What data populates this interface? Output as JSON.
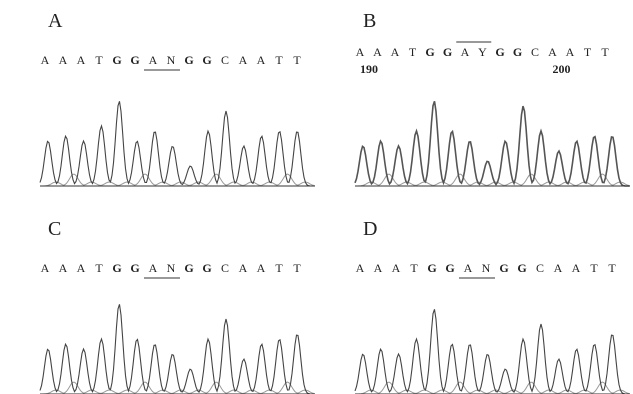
{
  "panels": [
    {
      "label": "A",
      "sequence": [
        "A",
        "A",
        "A",
        "T",
        "G",
        "G",
        "A",
        "N",
        "G",
        "G",
        "C",
        "A",
        "A",
        "T",
        "T"
      ]
    },
    {
      "label": "B",
      "sequence": [
        "A",
        "A",
        "A",
        "T",
        "G",
        "G",
        "A",
        "Y",
        "G",
        "G",
        "C",
        "A",
        "A",
        "T",
        "T"
      ],
      "positions": [
        "190",
        "200"
      ]
    },
    {
      "label": "C",
      "sequence": [
        "A",
        "A",
        "A",
        "T",
        "G",
        "G",
        "A",
        "N",
        "G",
        "G",
        "C",
        "A",
        "A",
        "T",
        "T"
      ]
    },
    {
      "label": "D",
      "sequence": [
        "A",
        "A",
        "A",
        "T",
        "G",
        "G",
        "A",
        "N",
        "G",
        "G",
        "C",
        "A",
        "A",
        "T",
        "T"
      ]
    }
  ]
}
